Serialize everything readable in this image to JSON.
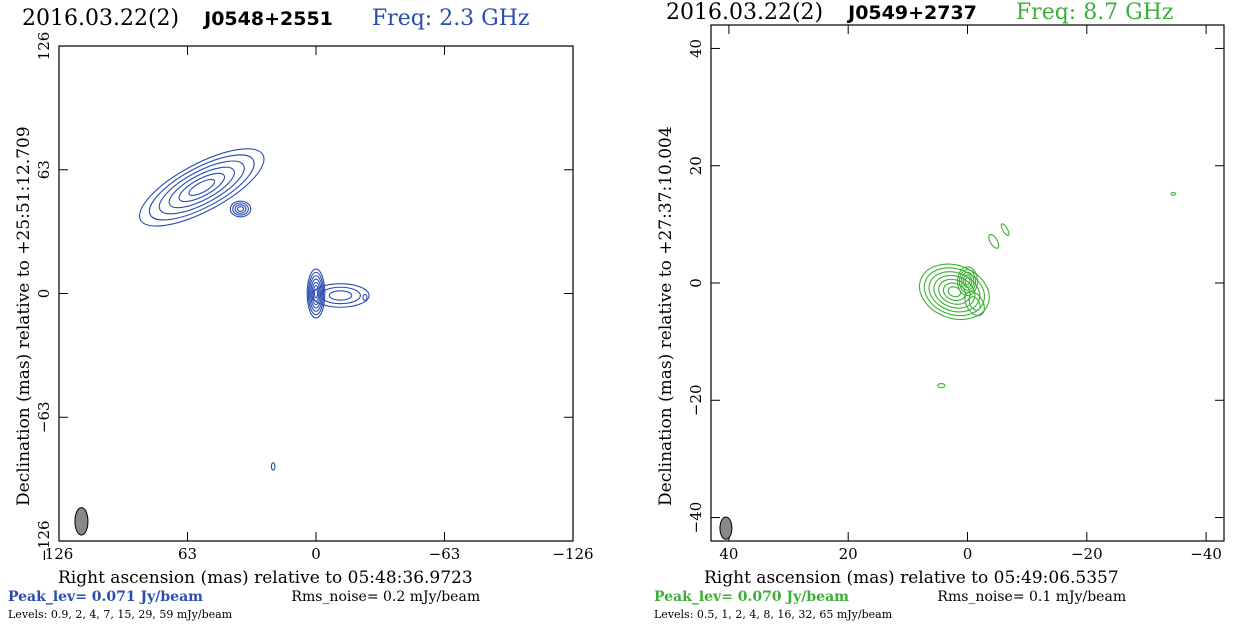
{
  "chart_data": [
    {
      "type": "contour",
      "date": "2016.03.22(2)",
      "source": "J0548+2551",
      "freq_label": "Freq: 2.3 GHz",
      "series_color": "#2a4db0",
      "xlabel": "Right ascension (mas) relative to 05:48:36.9723",
      "ylabel": "Declination (mas) relative to +25:51:12.709",
      "xlim": [
        126,
        -126
      ],
      "ylim": [
        -126,
        126
      ],
      "xticks": [
        126,
        63,
        0,
        -63,
        -126
      ],
      "yticks": [
        126,
        63,
        0,
        -63,
        -126
      ],
      "xtick_labels": [
        "126",
        "63",
        "0",
        "−63",
        "−126"
      ],
      "ytick_labels": [
        "126",
        "63",
        "0",
        "−63",
        "−126"
      ],
      "peak_text": "Peak_lev=  0.071 Jy/beam",
      "rms_text": "Rms_noise=  0.2 mJy/beam",
      "levels_text": "Levels: 0.9,   2,   4,   7,  15,  29,  59 mJy/beam",
      "components": [
        {
          "x": 56,
          "y": 54,
          "major": 34,
          "minor": 12,
          "angle": -28,
          "n": 6
        },
        {
          "x": 37,
          "y": 43,
          "major": 5,
          "minor": 4,
          "angle": 0,
          "n": 4
        },
        {
          "x": 0,
          "y": 0,
          "major": 12,
          "minor": 4.5,
          "angle": 90,
          "n": 7
        },
        {
          "x": -12,
          "y": -1,
          "major": 14,
          "minor": 6,
          "angle": 0,
          "n": 3
        },
        {
          "x": -24,
          "y": -2,
          "major": 1.5,
          "minor": 1.0,
          "angle": 90,
          "n": 1
        },
        {
          "x": 21,
          "y": -88,
          "major": 1.8,
          "minor": 0.9,
          "angle": 90,
          "n": 1
        }
      ],
      "beam": {
        "x": 115,
        "y": -116,
        "major": 7,
        "minor": 3.2
      }
    },
    {
      "type": "contour",
      "date": "2016.03.22(2)",
      "source": "J0549+2737",
      "freq_label": "Freq: 8.7 GHz",
      "series_color": "#3bb034",
      "xlabel": "Right ascension (mas) relative to 05:49:06.5357",
      "ylabel": "Declination (mas) relative to +27:37:10.004",
      "xlim": [
        43,
        -43
      ],
      "ylim": [
        -44,
        44
      ],
      "xticks": [
        40,
        20,
        0,
        -20,
        -40
      ],
      "yticks": [
        40,
        20,
        0,
        -20,
        -40
      ],
      "xtick_labels": [
        "40",
        "20",
        "0",
        "−20",
        "−40"
      ],
      "ytick_labels": [
        "40",
        "20",
        "0",
        "−20",
        "−40"
      ],
      "peak_text": "Peak_lev=  0.070 Jy/beam",
      "rms_text": "Rms_noise=  0.1 mJy/beam",
      "levels_text": "Levels: 0.5,    1,    2,    4,    8,  16,  32,  65 mJy/beam",
      "components": [
        {
          "x": 2.2,
          "y": -1.5,
          "major": 6,
          "minor": 4.5,
          "angle": 20,
          "n": 7
        },
        {
          "x": 0,
          "y": 0.3,
          "major": 2.4,
          "minor": 1.7,
          "angle": 90,
          "n": 5
        },
        {
          "x": -1.2,
          "y": -3.5,
          "major": 2.2,
          "minor": 1.4,
          "angle": 60,
          "n": 2
        },
        {
          "x": -4.4,
          "y": 7.1,
          "major": 1.3,
          "minor": 0.6,
          "angle": 60,
          "n": 1
        },
        {
          "x": -6.3,
          "y": 9.1,
          "major": 1.1,
          "minor": 0.4,
          "angle": 60,
          "n": 1
        },
        {
          "x": 4.4,
          "y": -17.5,
          "major": 0.6,
          "minor": 0.35,
          "angle": 0,
          "n": 1
        },
        {
          "x": -34.5,
          "y": 15.2,
          "major": 0.35,
          "minor": 0.25,
          "angle": 0,
          "n": 1
        }
      ],
      "beam": {
        "x": 40.5,
        "y": -41.8,
        "major": 1.9,
        "minor": 1.0
      }
    }
  ]
}
